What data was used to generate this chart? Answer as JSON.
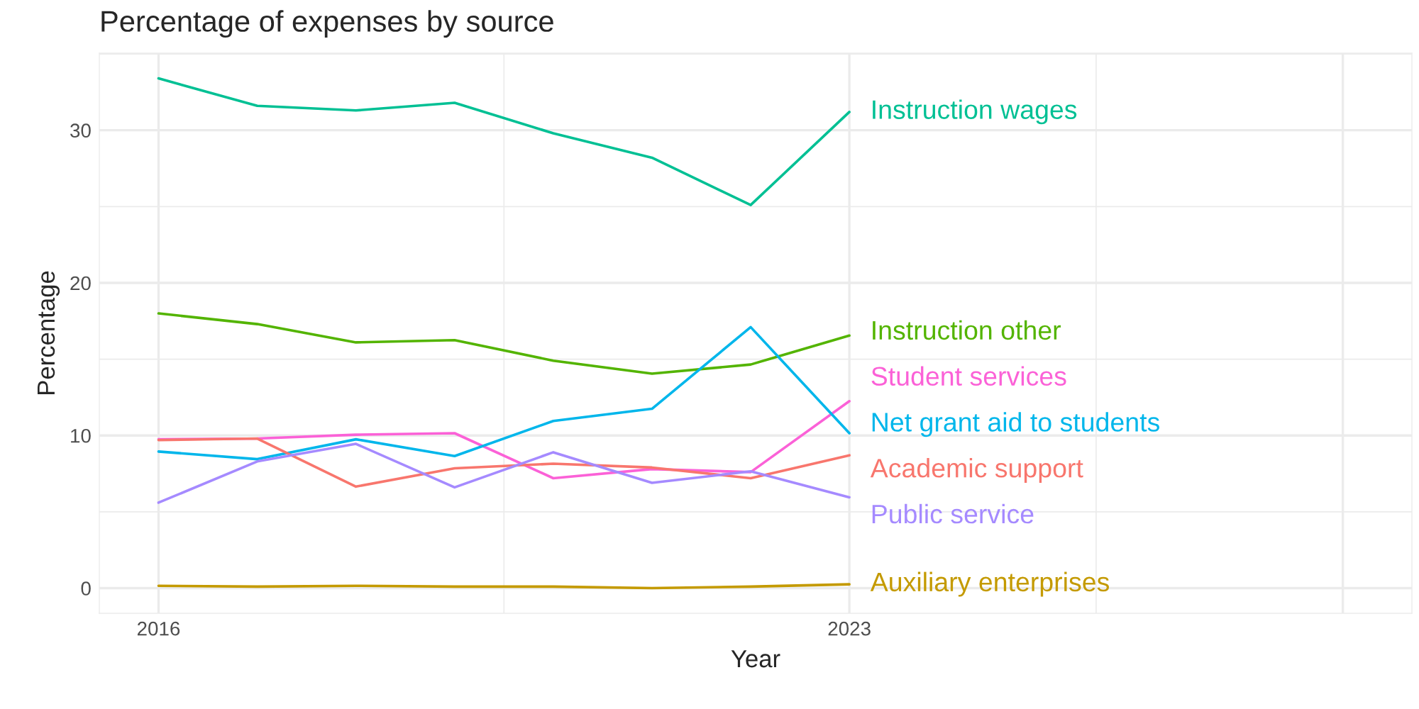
{
  "chart_data": {
    "type": "line",
    "title": "Percentage of expenses by source",
    "xlabel": "Year",
    "ylabel": "Percentage",
    "x": [
      2016,
      2017,
      2018,
      2019,
      2020,
      2021,
      2022,
      2023
    ],
    "series": [
      {
        "name": "Instruction wages",
        "color": "#00C094",
        "values": [
          33.4,
          31.6,
          31.3,
          31.8,
          29.8,
          28.2,
          25.1,
          31.2
        ]
      },
      {
        "name": "Instruction other",
        "color": "#53B400",
        "values": [
          18.0,
          17.3,
          16.1,
          16.25,
          14.9,
          14.05,
          14.65,
          16.55
        ]
      },
      {
        "name": "Student services",
        "color": "#FB61D7",
        "values": [
          9.75,
          9.8,
          10.05,
          10.15,
          7.2,
          7.8,
          7.6,
          12.25
        ]
      },
      {
        "name": "Net grant aid to students",
        "color": "#00B6EB",
        "values": [
          8.95,
          8.45,
          9.75,
          8.65,
          10.95,
          11.75,
          17.1,
          10.15
        ]
      },
      {
        "name": "Academic support",
        "color": "#F8766D",
        "values": [
          9.7,
          9.8,
          6.65,
          7.85,
          8.15,
          7.9,
          7.2,
          8.7
        ]
      },
      {
        "name": "Public service",
        "color": "#A58AFF",
        "values": [
          5.6,
          8.3,
          9.45,
          6.6,
          8.9,
          6.9,
          7.65,
          5.95
        ]
      },
      {
        "name": "Auxiliary enterprises",
        "color": "#C49A00",
        "values": [
          0.15,
          0.1,
          0.15,
          0.1,
          0.1,
          0.0,
          0.1,
          0.25
        ]
      }
    ],
    "xlim": [
      2015.4,
      2028.7
    ],
    "xticks": [
      2016,
      2023,
      {
        "value": 2028,
        "label": null
      }
    ],
    "ylim": [
      -1.65,
      35.05
    ],
    "yticks": [
      0,
      10,
      20,
      30
    ],
    "grid": true,
    "legend": false,
    "line_style": "solid",
    "marker": "none"
  }
}
